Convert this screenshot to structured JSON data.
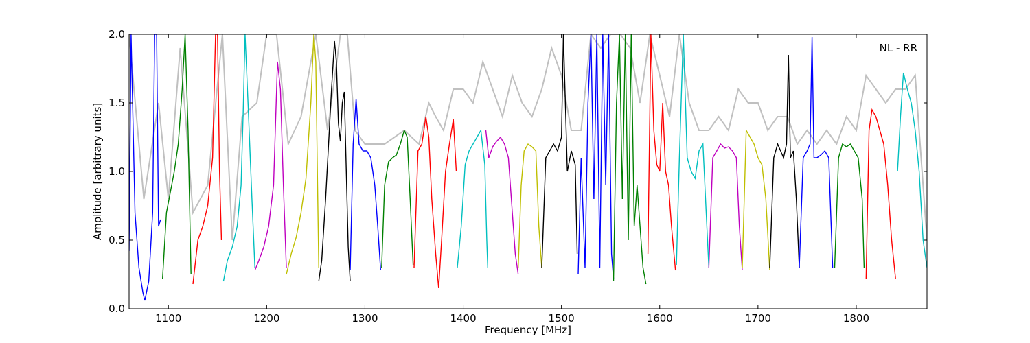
{
  "chart_data": {
    "type": "line",
    "title": "",
    "annotation": "NL - RR",
    "xlabel": "Frequency [MHz]",
    "ylabel": "Amplitude [arbitrary units]",
    "xlim": [
      1060,
      1872
    ],
    "ylim": [
      0.0,
      2.0
    ],
    "xticks": [
      1100,
      1200,
      1300,
      1400,
      1500,
      1600,
      1700,
      1800
    ],
    "yticks": [
      0.0,
      0.5,
      1.0,
      1.5,
      2.0
    ],
    "xtick_labels": [
      "1100",
      "1200",
      "1300",
      "1400",
      "1500",
      "1600",
      "1700",
      "1800"
    ],
    "ytick_labels": [
      "0.0",
      "0.5",
      "1.0",
      "1.5",
      "2.0"
    ],
    "grid": false,
    "legend": "none",
    "background_color": "#c0c0c0",
    "color_cycle": [
      "#0000ff",
      "#008000",
      "#ff0000",
      "#00bfbf",
      "#bf00bf",
      "#bfbf00",
      "#000000"
    ],
    "background_envelope": {
      "x": [
        1060,
        1075,
        1090,
        1100,
        1112,
        1125,
        1140,
        1155,
        1165,
        1175,
        1190,
        1200,
        1210,
        1222,
        1235,
        1250,
        1262,
        1275,
        1282,
        1290,
        1300,
        1320,
        1340,
        1355,
        1365,
        1372,
        1380,
        1390,
        1400,
        1410,
        1420,
        1430,
        1440,
        1450,
        1460,
        1470,
        1480,
        1490,
        1500,
        1510,
        1520,
        1530,
        1540,
        1550,
        1560,
        1570,
        1580,
        1590,
        1600,
        1610,
        1620,
        1630,
        1640,
        1650,
        1660,
        1670,
        1680,
        1690,
        1700,
        1710,
        1720,
        1730,
        1740,
        1750,
        1760,
        1770,
        1780,
        1790,
        1800,
        1810,
        1820,
        1830,
        1840,
        1850,
        1860,
        1872
      ],
      "y": [
        2.0,
        0.8,
        1.5,
        0.8,
        1.9,
        0.7,
        0.9,
        2.0,
        0.5,
        1.4,
        1.5,
        2.0,
        2.0,
        1.2,
        1.4,
        2.0,
        1.3,
        2.0,
        2.0,
        1.3,
        1.2,
        1.2,
        1.3,
        1.2,
        1.5,
        1.4,
        1.3,
        1.6,
        1.6,
        1.5,
        1.8,
        1.6,
        1.4,
        1.7,
        1.5,
        1.4,
        1.6,
        1.9,
        1.7,
        1.3,
        1.3,
        2.0,
        1.9,
        2.0,
        2.0,
        1.9,
        1.5,
        2.0,
        1.7,
        1.4,
        2.0,
        1.5,
        1.3,
        1.3,
        1.4,
        1.3,
        1.6,
        1.5,
        1.5,
        1.3,
        1.4,
        1.4,
        1.2,
        1.3,
        1.2,
        1.3,
        1.2,
        1.4,
        1.3,
        1.7,
        1.6,
        1.5,
        1.6,
        1.6,
        1.7,
        0.5
      ]
    },
    "series": [
      {
        "color": "#0000ff",
        "x": [
          1060,
          1062,
          1066,
          1070,
          1074,
          1076,
          1080,
          1084,
          1086,
          1088,
          1090,
          1092
        ],
        "y": [
          0.42,
          2.0,
          0.7,
          0.3,
          0.12,
          0.06,
          0.2,
          0.7,
          2.0,
          2.0,
          0.6,
          0.65
        ]
      },
      {
        "color": "#008000",
        "x": [
          1094,
          1098,
          1102,
          1106,
          1110,
          1114,
          1117,
          1120,
          1123
        ],
        "y": [
          0.22,
          0.7,
          0.85,
          1.0,
          1.2,
          1.6,
          2.0,
          1.3,
          0.25
        ]
      },
      {
        "color": "#ff0000",
        "x": [
          1125,
          1130,
          1135,
          1140,
          1145,
          1148,
          1150,
          1152,
          1154
        ],
        "y": [
          0.18,
          0.5,
          0.6,
          0.75,
          1.1,
          2.0,
          2.0,
          1.0,
          0.5
        ]
      },
      {
        "color": "#00bfbf",
        "x": [
          1156,
          1160,
          1165,
          1170,
          1174,
          1176,
          1178,
          1181,
          1185,
          1188
        ],
        "y": [
          0.2,
          0.35,
          0.45,
          0.6,
          0.9,
          1.4,
          2.0,
          1.5,
          0.8,
          0.3
        ]
      },
      {
        "color": "#bf00bf",
        "x": [
          1188,
          1192,
          1197,
          1202,
          1207,
          1211,
          1214,
          1217,
          1220
        ],
        "y": [
          0.28,
          0.35,
          0.45,
          0.6,
          0.9,
          1.8,
          1.6,
          0.9,
          0.3
        ]
      },
      {
        "color": "#bfbf00",
        "x": [
          1220,
          1225,
          1230,
          1235,
          1240,
          1245,
          1248,
          1250,
          1253
        ],
        "y": [
          0.25,
          0.4,
          0.52,
          0.7,
          0.95,
          1.5,
          2.0,
          1.8,
          0.3
        ]
      },
      {
        "color": "#000000",
        "x": [
          1253,
          1256,
          1260,
          1263,
          1266,
          1269,
          1271,
          1273,
          1275,
          1277,
          1279,
          1281,
          1283,
          1285
        ],
        "y": [
          0.2,
          0.35,
          0.8,
          1.2,
          1.6,
          1.95,
          1.8,
          1.35,
          1.22,
          1.5,
          1.58,
          1.0,
          0.45,
          0.2
        ]
      },
      {
        "color": "#0000ff",
        "x": [
          1285,
          1288,
          1291,
          1294,
          1298,
          1302,
          1306,
          1310,
          1313,
          1316
        ],
        "y": [
          0.28,
          1.2,
          1.53,
          1.2,
          1.15,
          1.15,
          1.1,
          0.9,
          0.6,
          0.28
        ]
      },
      {
        "color": "#008000",
        "x": [
          1317,
          1320,
          1324,
          1328,
          1332,
          1336,
          1340,
          1343,
          1346,
          1349
        ],
        "y": [
          0.3,
          0.9,
          1.07,
          1.1,
          1.12,
          1.2,
          1.3,
          1.25,
          0.8,
          0.32
        ]
      },
      {
        "color": "#ff0000",
        "x": [
          1350,
          1354,
          1358,
          1362,
          1365,
          1368,
          1372,
          1375,
          1378,
          1382,
          1386,
          1390,
          1393
        ],
        "y": [
          0.3,
          1.15,
          1.2,
          1.4,
          1.25,
          0.8,
          0.4,
          0.15,
          0.5,
          1.0,
          1.2,
          1.38,
          1.0
        ]
      },
      {
        "color": "#00bfbf",
        "x": [
          1394,
          1398,
          1402,
          1406,
          1410,
          1414,
          1418,
          1422,
          1424,
          1425
        ],
        "y": [
          0.3,
          0.6,
          1.05,
          1.15,
          1.2,
          1.25,
          1.3,
          1.05,
          0.5,
          0.3
        ]
      },
      {
        "color": "#bf00bf",
        "x": [
          1423,
          1426,
          1430,
          1434,
          1438,
          1442,
          1446,
          1450,
          1453,
          1456
        ],
        "y": [
          1.3,
          1.1,
          1.18,
          1.22,
          1.25,
          1.2,
          1.1,
          0.7,
          0.4,
          0.25
        ]
      },
      {
        "color": "#bfbf00",
        "x": [
          1456,
          1459,
          1462,
          1466,
          1470,
          1474,
          1477,
          1480
        ],
        "y": [
          0.3,
          0.9,
          1.15,
          1.2,
          1.18,
          1.15,
          0.6,
          0.3
        ]
      },
      {
        "color": "#000000",
        "x": [
          1480,
          1484,
          1488,
          1492,
          1496,
          1500,
          1502,
          1506,
          1510,
          1514,
          1516
        ],
        "y": [
          0.3,
          1.1,
          1.15,
          1.2,
          1.15,
          1.25,
          2.0,
          1.0,
          1.15,
          1.05,
          0.4
        ]
      },
      {
        "color": "#0000ff",
        "x": [
          1517,
          1520,
          1524,
          1527,
          1530,
          1533,
          1536,
          1539,
          1542,
          1545,
          1548,
          1551,
          1553
        ],
        "y": [
          0.25,
          1.1,
          0.3,
          1.5,
          2.0,
          0.8,
          2.0,
          0.3,
          2.0,
          0.9,
          2.0,
          0.4,
          0.22
        ]
      },
      {
        "color": "#008000",
        "x": [
          1553,
          1556,
          1559,
          1562,
          1565,
          1568,
          1571,
          1574,
          1577,
          1580,
          1583,
          1586
        ],
        "y": [
          0.2,
          1.5,
          2.0,
          0.8,
          2.0,
          0.5,
          2.0,
          0.6,
          0.9,
          0.6,
          0.3,
          0.18
        ]
      },
      {
        "color": "#ff0000",
        "x": [
          1588,
          1591,
          1594,
          1597,
          1600,
          1603,
          1606,
          1609,
          1612,
          1616
        ],
        "y": [
          0.4,
          2.0,
          1.3,
          1.05,
          1.0,
          1.5,
          1.0,
          0.9,
          0.6,
          0.28
        ]
      },
      {
        "color": "#00bfbf",
        "x": [
          1617,
          1620,
          1624,
          1628,
          1632,
          1636,
          1640,
          1644,
          1648,
          1650
        ],
        "y": [
          0.32,
          1.1,
          2.0,
          1.1,
          1.0,
          0.95,
          1.15,
          1.2,
          0.6,
          0.3
        ]
      },
      {
        "color": "#bf00bf",
        "x": [
          1650,
          1654,
          1658,
          1662,
          1666,
          1670,
          1674,
          1678,
          1681,
          1684
        ],
        "y": [
          0.3,
          1.1,
          1.15,
          1.2,
          1.17,
          1.18,
          1.15,
          1.1,
          0.6,
          0.28
        ]
      },
      {
        "color": "#bfbf00",
        "x": [
          1684,
          1688,
          1692,
          1696,
          1700,
          1704,
          1708,
          1712
        ],
        "y": [
          0.3,
          1.3,
          1.25,
          1.2,
          1.1,
          1.05,
          0.8,
          0.28
        ]
      },
      {
        "color": "#000000",
        "x": [
          1712,
          1716,
          1720,
          1723,
          1726,
          1729,
          1731,
          1733,
          1736,
          1739,
          1742
        ],
        "y": [
          0.3,
          1.1,
          1.2,
          1.15,
          1.1,
          1.2,
          1.85,
          1.1,
          1.15,
          0.8,
          0.3
        ]
      },
      {
        "color": "#0000ff",
        "x": [
          1742,
          1746,
          1750,
          1753,
          1755,
          1757,
          1760,
          1764,
          1768,
          1772,
          1776
        ],
        "y": [
          0.3,
          1.1,
          1.15,
          1.2,
          1.98,
          1.1,
          1.1,
          1.12,
          1.15,
          1.1,
          0.3
        ]
      },
      {
        "color": "#008000",
        "x": [
          1778,
          1782,
          1786,
          1790,
          1794,
          1798,
          1802,
          1806,
          1808
        ],
        "y": [
          0.3,
          1.1,
          1.2,
          1.18,
          1.2,
          1.15,
          1.1,
          0.8,
          0.3
        ]
      },
      {
        "color": "#ff0000",
        "x": [
          1810,
          1813,
          1816,
          1820,
          1824,
          1828,
          1832,
          1836,
          1840
        ],
        "y": [
          0.22,
          1.3,
          1.45,
          1.4,
          1.3,
          1.2,
          0.9,
          0.5,
          0.22
        ]
      },
      {
        "color": "#00bfbf",
        "x": [
          1842,
          1845,
          1848,
          1852,
          1856,
          1860,
          1864,
          1868,
          1872
        ],
        "y": [
          1.0,
          1.4,
          1.72,
          1.6,
          1.5,
          1.3,
          1.0,
          0.5,
          0.3
        ]
      }
    ]
  }
}
